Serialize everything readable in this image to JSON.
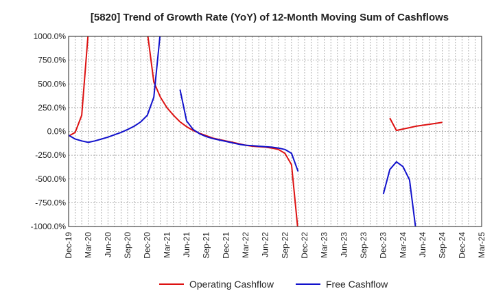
{
  "chart_data": {
    "type": "line",
    "title": "[5820]  Trend of Growth Rate (YoY) of 12-Month Moving Sum of Cashflows",
    "xlabel": "",
    "ylabel": "",
    "ylim": [
      -1000,
      1000
    ],
    "y_ticks": [
      {
        "value": 1000,
        "label": "1000.0%"
      },
      {
        "value": 750,
        "label": "750.0%"
      },
      {
        "value": 500,
        "label": "500.0%"
      },
      {
        "value": 250,
        "label": "250.0%"
      },
      {
        "value": 0,
        "label": "0.0%"
      },
      {
        "value": -250,
        "label": "-250.0%"
      },
      {
        "value": -500,
        "label": "-500.0%"
      },
      {
        "value": -750,
        "label": "-750.0%"
      },
      {
        "value": -1000,
        "label": "-1000.0%"
      }
    ],
    "x_ticks": [
      "Dec-19",
      "Mar-20",
      "Jun-20",
      "Sep-20",
      "Dec-20",
      "Mar-21",
      "Jun-21",
      "Sep-21",
      "Dec-21",
      "Mar-22",
      "Jun-22",
      "Sep-22",
      "Dec-22",
      "Mar-23",
      "Jun-23",
      "Sep-23",
      "Dec-23",
      "Mar-24",
      "Jun-24",
      "Sep-24",
      "Dec-24",
      "Mar-25"
    ],
    "grid": true,
    "legend_position": "bottom",
    "series": [
      {
        "name": "Operating Cashflow",
        "color": "#dd1111",
        "points": [
          [
            "Dec-19",
            -50
          ],
          [
            "Jan-20",
            -10
          ],
          [
            "Feb-20",
            170
          ],
          [
            "Mar-20",
            1050
          ],
          [
            "Oct-20",
            null
          ],
          [
            "Dec-20",
            1050
          ],
          [
            "Jan-21",
            520
          ],
          [
            "Feb-21",
            360
          ],
          [
            "Mar-21",
            250
          ],
          [
            "Apr-21",
            170
          ],
          [
            "May-21",
            100
          ],
          [
            "Jun-21",
            50
          ],
          [
            "Jul-21",
            10
          ],
          [
            "Aug-21",
            -20
          ],
          [
            "Sep-21",
            -45
          ],
          [
            "Oct-21",
            -70
          ],
          [
            "Nov-21",
            -85
          ],
          [
            "Dec-21",
            -100
          ],
          [
            "Jan-22",
            -115
          ],
          [
            "Feb-22",
            -130
          ],
          [
            "Mar-22",
            -145
          ],
          [
            "Apr-22",
            -155
          ],
          [
            "May-22",
            -160
          ],
          [
            "Jun-22",
            -165
          ],
          [
            "Jul-22",
            -175
          ],
          [
            "Aug-22",
            -190
          ],
          [
            "Sep-22",
            -230
          ],
          [
            "Oct-22",
            -350
          ],
          [
            "Nov-22",
            -1050
          ],
          [
            "Jan-24",
            140
          ],
          [
            "Feb-24",
            10
          ],
          [
            "Mar-24",
            25
          ],
          [
            "Apr-24",
            40
          ],
          [
            "May-24",
            55
          ],
          [
            "Jun-24",
            65
          ],
          [
            "Jul-24",
            75
          ],
          [
            "Aug-24",
            85
          ],
          [
            "Sep-24",
            95
          ]
        ]
      },
      {
        "name": "Free Cashflow",
        "color": "#1111cc",
        "points": [
          [
            "Dec-19",
            -40
          ],
          [
            "Jan-20",
            -80
          ],
          [
            "Feb-20",
            -100
          ],
          [
            "Mar-20",
            -115
          ],
          [
            "Apr-20",
            -100
          ],
          [
            "May-20",
            -80
          ],
          [
            "Jun-20",
            -60
          ],
          [
            "Jul-20",
            -35
          ],
          [
            "Aug-20",
            -10
          ],
          [
            "Sep-20",
            20
          ],
          [
            "Oct-20",
            55
          ],
          [
            "Nov-20",
            100
          ],
          [
            "Dec-20",
            170
          ],
          [
            "Jan-21",
            360
          ],
          [
            "Feb-21",
            1050
          ],
          [
            "May-21",
            440
          ],
          [
            "Jun-21",
            110
          ],
          [
            "Jul-21",
            20
          ],
          [
            "Aug-21",
            -25
          ],
          [
            "Sep-21",
            -55
          ],
          [
            "Oct-21",
            -75
          ],
          [
            "Nov-21",
            -90
          ],
          [
            "Dec-21",
            -105
          ],
          [
            "Jan-22",
            -120
          ],
          [
            "Feb-22",
            -135
          ],
          [
            "Mar-22",
            -145
          ],
          [
            "Apr-22",
            -150
          ],
          [
            "May-22",
            -155
          ],
          [
            "Jun-22",
            -160
          ],
          [
            "Jul-22",
            -165
          ],
          [
            "Aug-22",
            -175
          ],
          [
            "Sep-22",
            -190
          ],
          [
            "Oct-22",
            -230
          ],
          [
            "Nov-22",
            -420
          ],
          [
            "Dec-23",
            -660
          ],
          [
            "Jan-24",
            -400
          ],
          [
            "Feb-24",
            -320
          ],
          [
            "Mar-24",
            -370
          ],
          [
            "Apr-24",
            -510
          ],
          [
            "May-24",
            -1050
          ]
        ]
      }
    ]
  }
}
